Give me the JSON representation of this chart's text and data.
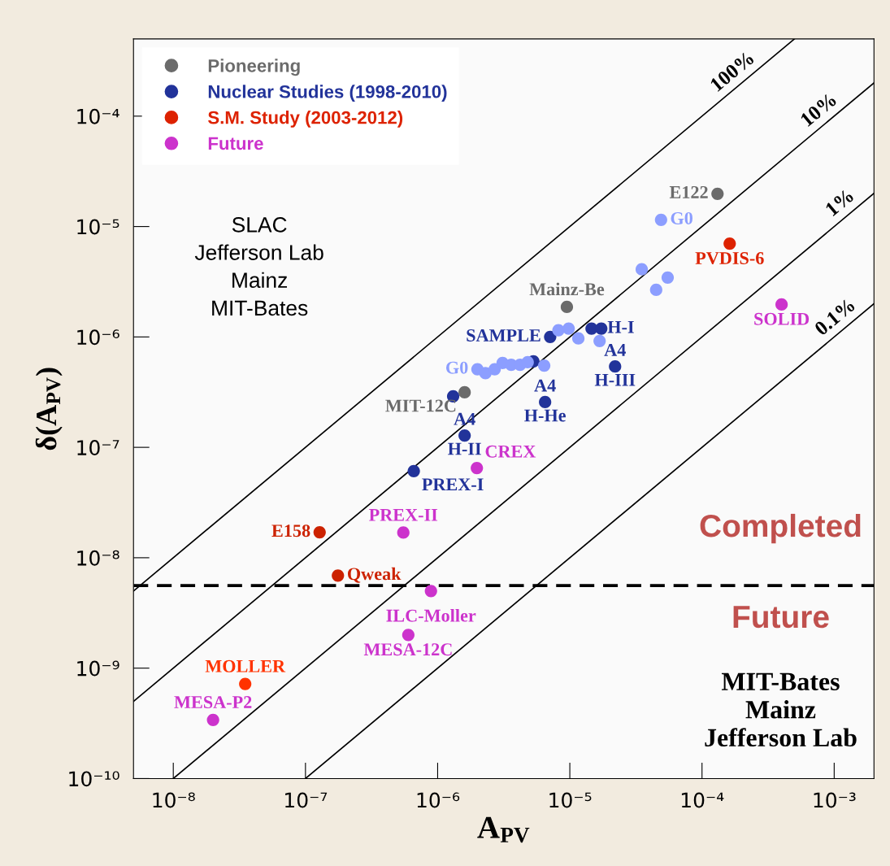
{
  "chart_data": {
    "type": "scatter",
    "xlabel": "A$_{PV}$",
    "ylabel": "δ(A$_{PV}$)",
    "log": "xy",
    "marker": "circle",
    "legend": "top left",
    "grid": false,
    "xlim": [
      5e-09,
      0.002
    ],
    "ylim": [
      1e-10,
      0.0005
    ],
    "xticks": [
      {
        "value": 1e-08,
        "label": "10⁻⁸"
      },
      {
        "value": 1e-07,
        "label": "10⁻⁷"
      },
      {
        "value": 1e-06,
        "label": "10⁻⁶"
      },
      {
        "value": 1e-05,
        "label": "10⁻⁵"
      },
      {
        "value": 0.0001,
        "label": "10⁻⁴"
      },
      {
        "value": 0.001,
        "label": "10⁻³"
      }
    ],
    "yticks": [
      {
        "value": 1e-10,
        "label": "10⁻¹⁰"
      },
      {
        "value": 1e-09,
        "label": "10⁻⁹"
      },
      {
        "value": 1e-08,
        "label": "10⁻⁸"
      },
      {
        "value": 1e-07,
        "label": "10⁻⁷"
      },
      {
        "value": 1e-06,
        "label": "10⁻⁶"
      },
      {
        "value": 1e-05,
        "label": "10⁻⁵"
      },
      {
        "value": 0.0001,
        "label": "10⁻⁴"
      }
    ],
    "series": [
      {
        "name": "Pioneering",
        "type": "scatter",
        "color": "#6b6b6b",
        "x": [
          0.000131,
          9.5e-06,
          1.6e-06
        ],
        "values": [
          1.98e-05,
          1.87e-06,
          3.15e-07
        ],
        "value_labels": [
          "E122",
          "Mainz-Be",
          "MIT-12C"
        ]
      },
      {
        "name": "Nuclear Studies (1998-2010)",
        "type": "scatter",
        "color": "#22339a",
        "x": [
          7.1e-06,
          5.3e-06,
          1.46e-05,
          1.73e-05,
          2.2e-05,
          1.31e-06,
          1.6e-06,
          6.5e-06,
          6.6e-07
        ],
        "values": [
          1e-06,
          6e-07,
          1.19e-06,
          1.19e-06,
          5.4e-07,
          2.9e-07,
          1.28e-07,
          2.57e-07,
          6.1e-08
        ],
        "value_labels": [
          "SAMPLE",
          null,
          "H-I",
          null,
          "A4\nH-III",
          null,
          "A4\nH-II",
          "A4\nH-He",
          "PREX-I"
        ]
      },
      {
        "name": "S.M. Study (2003-2012)",
        "type": "scatter",
        "color": "#dd2200",
        "colors": [
          "#dd2200",
          "#cc2200",
          "#cc2200",
          "#ff3300"
        ],
        "x": [
          0.000162,
          1.28e-07,
          1.76e-07,
          3.5e-08
        ],
        "values": [
          7e-06,
          1.7e-08,
          6.9e-09,
          7.2e-10
        ],
        "value_labels": [
          "PVDIS-6",
          "E158",
          "Qweak",
          "MOLLER"
        ]
      },
      {
        "name": "Future",
        "type": "scatter",
        "color": "#cc33cc",
        "x": [
          0.0004,
          1.98e-06,
          5.5e-07,
          8.9e-07,
          6e-07,
          2e-08
        ],
        "values": [
          1.97e-06,
          6.5e-08,
          1.69e-08,
          5e-09,
          2e-09,
          3.4e-10
        ],
        "value_labels": [
          "SOLID",
          "CREX",
          "PREX-II",
          "ILC-Moller",
          "MESA-12C",
          "MESA-P2"
        ]
      },
      {
        "type": "scatter",
        "color": "#8c9eff",
        "x": [
          2e-06,
          2.3e-06,
          2.7e-06,
          3.1e-06,
          3.6e-06,
          4.2e-06,
          4.8e-06,
          6.4e-06,
          8.2e-06,
          9.8e-06,
          1.16e-05,
          1.68e-05,
          3.5e-05,
          4.9e-05,
          5.5e-05,
          4.5e-05
        ],
        "values": [
          5.1e-07,
          4.7e-07,
          5.1e-07,
          5.8e-07,
          5.6e-07,
          5.6e-07,
          5.9e-07,
          5.5e-07,
          1.15e-06,
          1.19e-06,
          9.7e-07,
          9.2e-07,
          4.1e-06,
          1.15e-05,
          3.45e-06,
          2.67e-06
        ],
        "value_labels": [
          "G0",
          null,
          null,
          null,
          null,
          null,
          null,
          null,
          null,
          null,
          null,
          null,
          null,
          "G0",
          null,
          null
        ]
      },
      {
        "type": "line",
        "marker": "none",
        "color": "#000000",
        "x": [
          5e-09,
          0.0005
        ],
        "values": [
          5e-09,
          0.0005
        ]
      },
      {
        "type": "line",
        "marker": "none",
        "color": "#000000",
        "x": [
          5e-09,
          0.002
        ],
        "values": [
          5e-10,
          0.0002
        ]
      },
      {
        "type": "line",
        "marker": "none",
        "color": "#000000",
        "x": [
          1e-08,
          0.002
        ],
        "values": [
          1e-10,
          2e-05
        ]
      },
      {
        "type": "line",
        "marker": "none",
        "color": "#000000",
        "x": [
          1e-07,
          0.002
        ],
        "values": [
          1e-10,
          2e-06
        ]
      }
    ],
    "ref_lines": [
      {
        "axis": "y",
        "value": 5.6e-09,
        "color": "#000000",
        "line_style": "dashed"
      }
    ],
    "annotations": [
      {
        "text": "100%",
        "x": 0.0002,
        "y": 0.0002
      },
      {
        "text": "10%",
        "x": 0.0009,
        "y": 9e-05
      },
      {
        "text": "1%",
        "x": 0.0013,
        "y": 1.3e-05
      },
      {
        "text": "0.1%",
        "x": 0.0012,
        "y": 1.2e-06
      },
      "SLAC\nJefferson Lab\nMainz\nMIT-Bates",
      "Completed",
      "Future",
      "MIT-Bates\nMainz\nJefferson Lab"
    ]
  }
}
